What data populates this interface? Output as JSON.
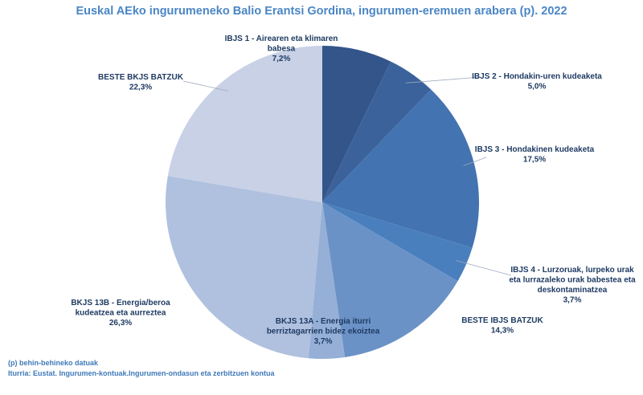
{
  "chart_data": {
    "type": "pie",
    "title": "Euskal AEko ingurumeneko Balio Erantsi Gordina, ingurumen-eremuen arabera (p). 2022",
    "slices": [
      {
        "lines": [
          "IBJS 1 - Airearen eta klimaren",
          "babesa"
        ],
        "value_label": "7,2%",
        "value": 7.2,
        "color": "#34558a"
      },
      {
        "lines": [
          "IBJS 2 - Hondakin-uren kudeaketa"
        ],
        "value_label": "5,0%",
        "value": 5.0,
        "color": "#3b629b"
      },
      {
        "lines": [
          "IBJS 3 - Hondakinen kudeaketa"
        ],
        "value_label": "17,5%",
        "value": 17.5,
        "color": "#4373b0"
      },
      {
        "lines": [
          "IBJS 4 - Lurzoruak, lurpeko urak",
          "eta lurrazaleko urak babestea eta",
          "deskontaminatzea"
        ],
        "value_label": "3,7%",
        "value": 3.7,
        "color": "#4a7fbe"
      },
      {
        "lines": [
          "BESTE IBJS BATZUK"
        ],
        "value_label": "14,3%",
        "value": 14.3,
        "color": "#6b92c6"
      },
      {
        "lines": [
          "BKJS 13A - Energia iturri",
          "berriztagarrien bidez ekoiztea"
        ],
        "value_label": "3,7%",
        "value": 3.7,
        "color": "#95afd6"
      },
      {
        "lines": [
          "BKJS 13B - Energia/beroa",
          "kudeatzea eta aurreztea"
        ],
        "value_label": "26,3%",
        "value": 26.3,
        "color": "#b0c1df"
      },
      {
        "lines": [
          "BESTE BKJS BATZUK"
        ],
        "value_label": "22,3%",
        "value": 22.3,
        "color": "#c8d1e6"
      }
    ]
  },
  "footnotes": {
    "note": "(p) behin-behineko datuak",
    "source": "Iturria: Eustat. Ingurumen-kontuak.Ingurumen-ondasun eta zerbitzuen kontua"
  }
}
